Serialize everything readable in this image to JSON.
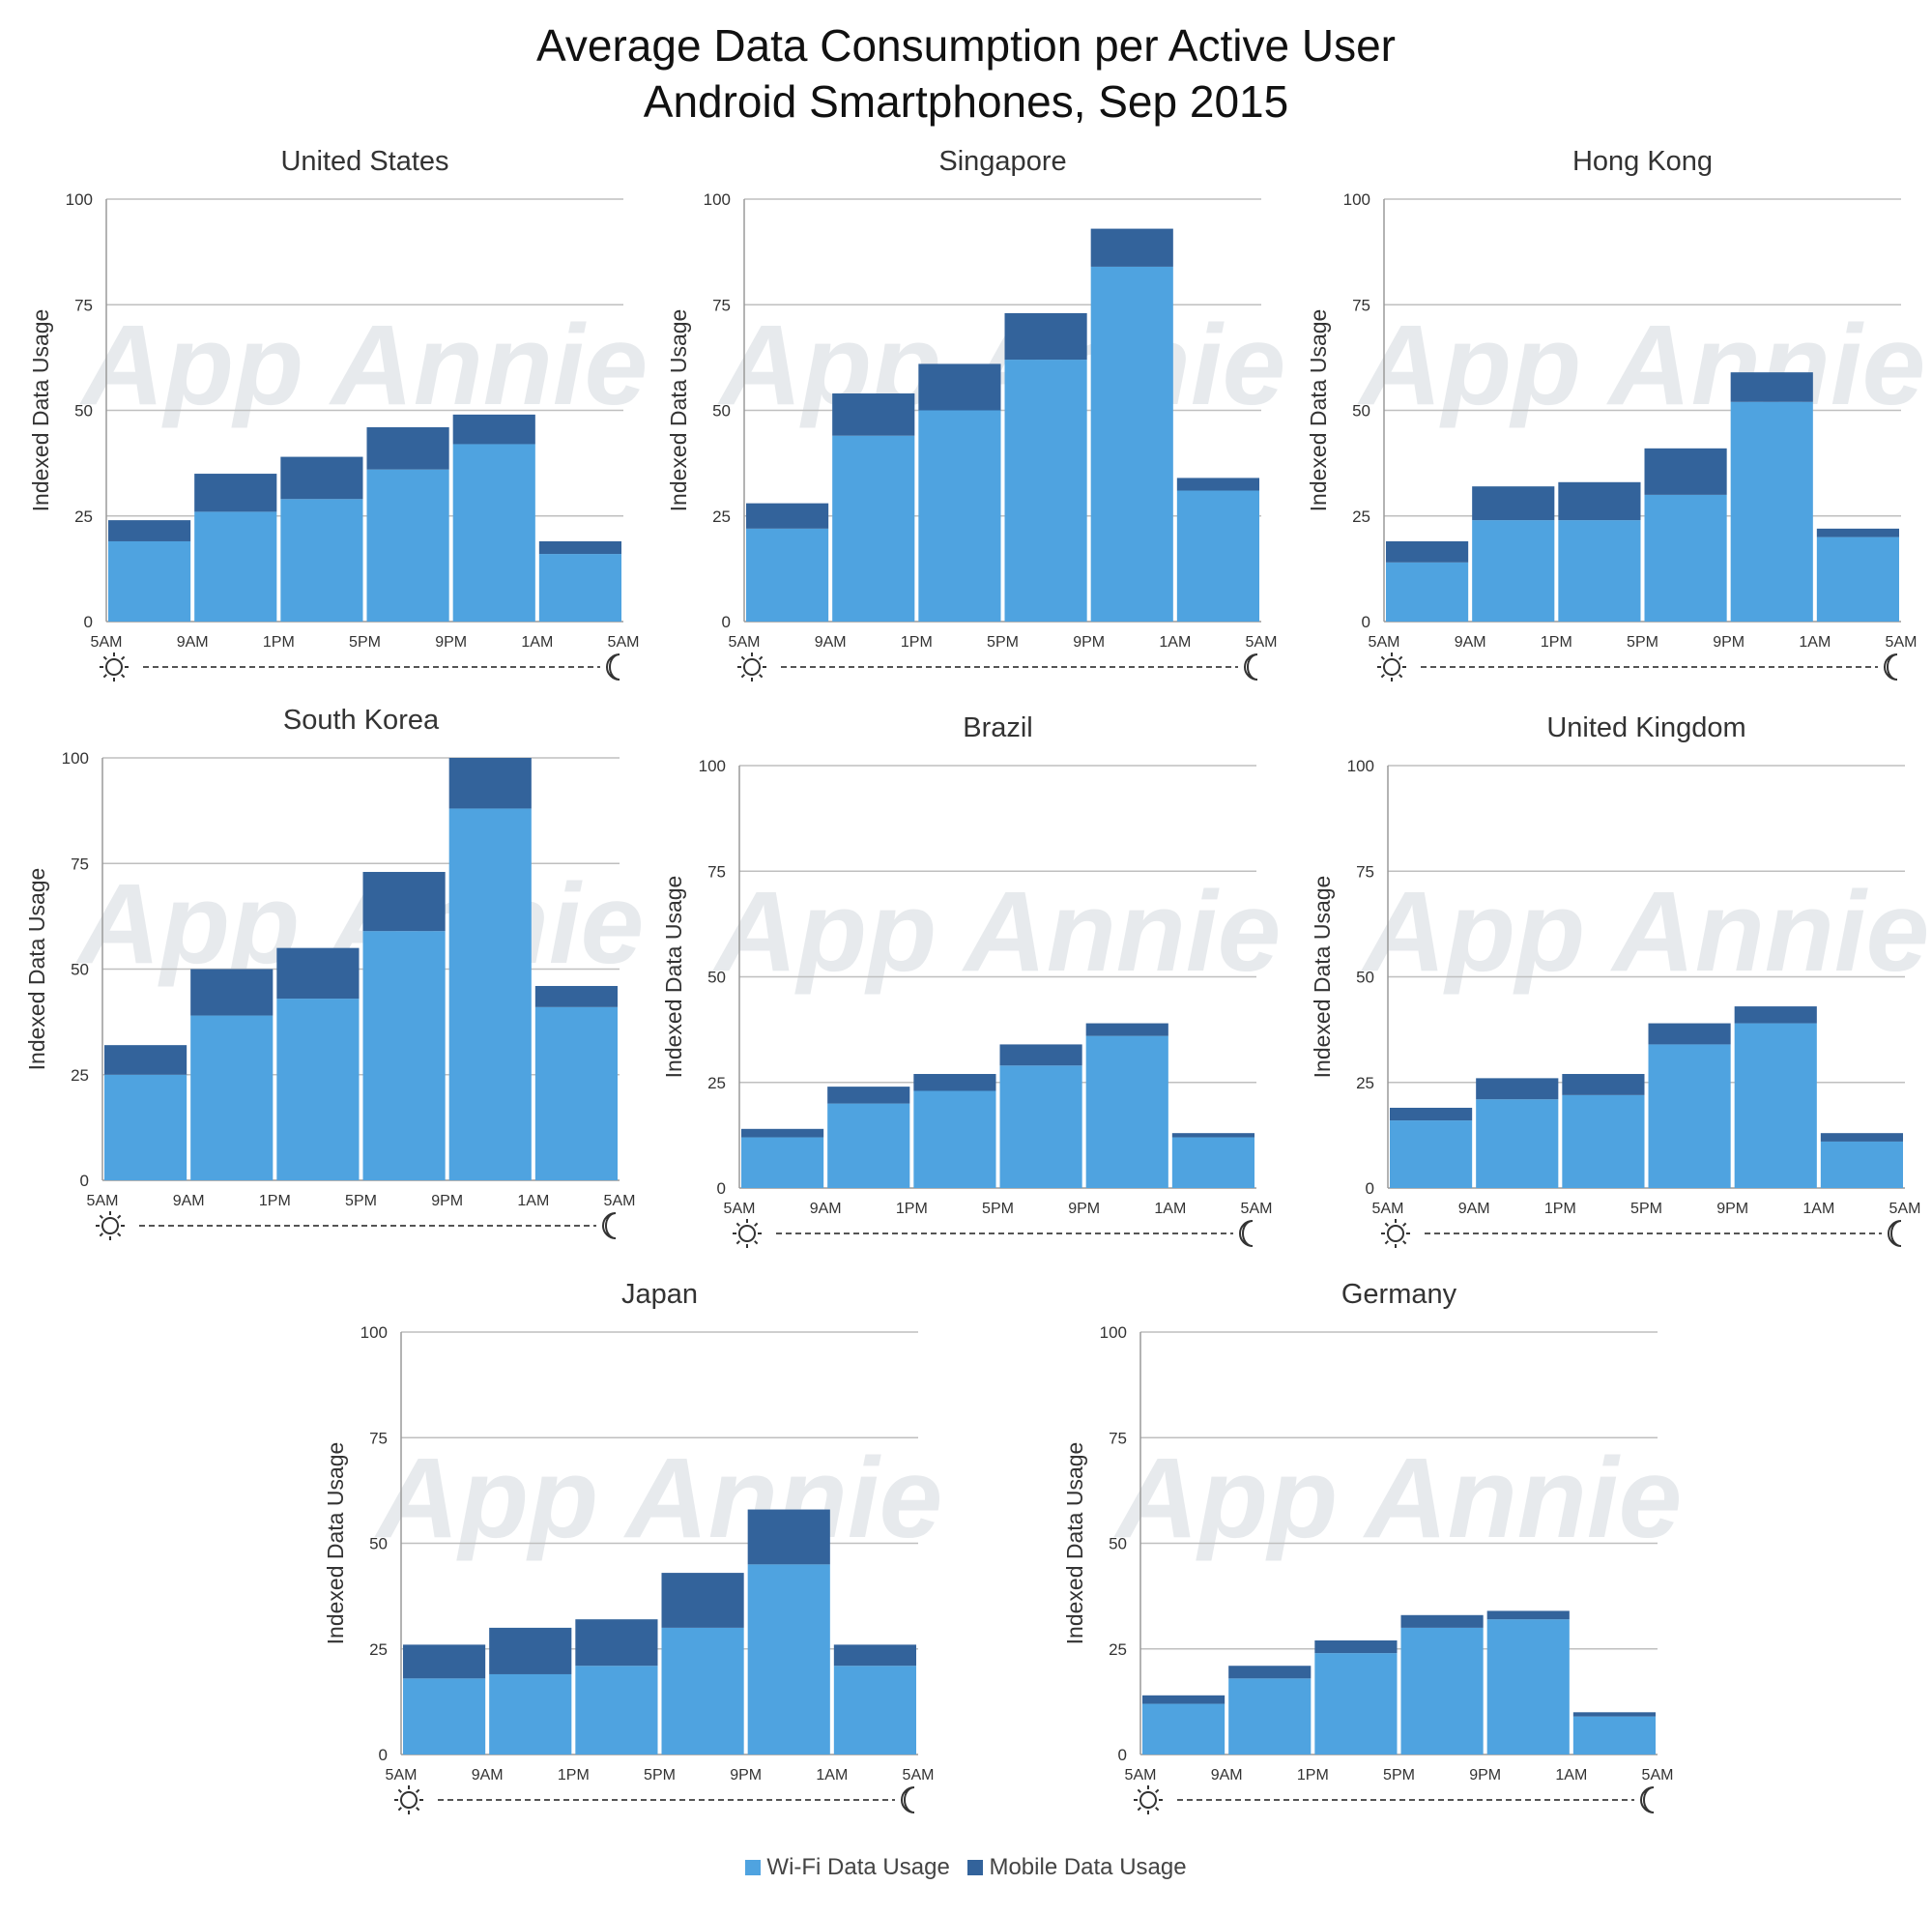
{
  "title_line1": "Average Data Consumption per Active User",
  "title_line2": "Android Smartphones, Sep 2015",
  "watermark": "App Annie",
  "colors": {
    "wifi": "#4fa3e0",
    "mobile": "#33639b",
    "grid": "#bfbfbf",
    "axis": "#9a9a9a",
    "watermark": "#e7eaed"
  },
  "legend": {
    "wifi": "Wi-Fi Data Usage",
    "mobile": "Mobile Data Usage"
  },
  "icons": {
    "start": "sun-icon",
    "end": "moon-icon"
  },
  "chart_data": [
    {
      "type": "bar",
      "stacked": true,
      "title": "United States",
      "ylabel": "Indexed Data Usage",
      "ylim": [
        0,
        100
      ],
      "yticks": [
        0,
        25,
        50,
        75,
        100
      ],
      "xticks": [
        "5AM",
        "9AM",
        "1PM",
        "5PM",
        "9PM",
        "1AM",
        "5AM"
      ],
      "series": [
        {
          "name": "Wi-Fi Data Usage",
          "values": [
            19,
            26,
            29,
            36,
            42,
            16
          ]
        },
        {
          "name": "Mobile Data Usage",
          "values": [
            5,
            9,
            10,
            10,
            7,
            3
          ]
        }
      ]
    },
    {
      "type": "bar",
      "stacked": true,
      "title": "Singapore",
      "ylabel": "Indexed Data Usage",
      "ylim": [
        0,
        100
      ],
      "yticks": [
        0,
        25,
        50,
        75,
        100
      ],
      "xticks": [
        "5AM",
        "9AM",
        "1PM",
        "5PM",
        "9PM",
        "1AM",
        "5AM"
      ],
      "series": [
        {
          "name": "Wi-Fi Data Usage",
          "values": [
            22,
            44,
            50,
            62,
            84,
            31
          ]
        },
        {
          "name": "Mobile Data Usage",
          "values": [
            6,
            10,
            11,
            11,
            9,
            3
          ]
        }
      ]
    },
    {
      "type": "bar",
      "stacked": true,
      "title": "Hong Kong",
      "ylabel": "Indexed Data Usage",
      "ylim": [
        0,
        100
      ],
      "yticks": [
        0,
        25,
        50,
        75,
        100
      ],
      "xticks": [
        "5AM",
        "9AM",
        "1PM",
        "5PM",
        "9PM",
        "1AM",
        "5AM"
      ],
      "series": [
        {
          "name": "Wi-Fi Data Usage",
          "values": [
            14,
            24,
            24,
            30,
            52,
            20
          ]
        },
        {
          "name": "Mobile Data Usage",
          "values": [
            5,
            8,
            9,
            11,
            7,
            2
          ]
        }
      ]
    },
    {
      "type": "bar",
      "stacked": true,
      "title": "South Korea",
      "ylabel": "Indexed Data Usage",
      "ylim": [
        0,
        100
      ],
      "yticks": [
        0,
        25,
        50,
        75,
        100
      ],
      "xticks": [
        "5AM",
        "9AM",
        "1PM",
        "5PM",
        "9PM",
        "1AM",
        "5AM"
      ],
      "series": [
        {
          "name": "Wi-Fi Data Usage",
          "values": [
            25,
            39,
            43,
            59,
            88,
            41
          ]
        },
        {
          "name": "Mobile Data Usage",
          "values": [
            7,
            11,
            12,
            14,
            12,
            5
          ]
        }
      ]
    },
    {
      "type": "bar",
      "stacked": true,
      "title": "Brazil",
      "ylabel": "Indexed Data Usage",
      "ylim": [
        0,
        100
      ],
      "yticks": [
        0,
        25,
        50,
        75,
        100
      ],
      "xticks": [
        "5AM",
        "9AM",
        "1PM",
        "5PM",
        "9PM",
        "1AM",
        "5AM"
      ],
      "series": [
        {
          "name": "Wi-Fi Data Usage",
          "values": [
            12,
            20,
            23,
            29,
            36,
            12
          ]
        },
        {
          "name": "Mobile Data Usage",
          "values": [
            2,
            4,
            4,
            5,
            3,
            1
          ]
        }
      ]
    },
    {
      "type": "bar",
      "stacked": true,
      "title": "United Kingdom",
      "ylabel": "Indexed Data Usage",
      "ylim": [
        0,
        100
      ],
      "yticks": [
        0,
        25,
        50,
        75,
        100
      ],
      "xticks": [
        "5AM",
        "9AM",
        "1PM",
        "5PM",
        "9PM",
        "1AM",
        "5AM"
      ],
      "series": [
        {
          "name": "Wi-Fi Data Usage",
          "values": [
            16,
            21,
            22,
            34,
            39,
            11
          ]
        },
        {
          "name": "Mobile Data Usage",
          "values": [
            3,
            5,
            5,
            5,
            4,
            2
          ]
        }
      ]
    },
    {
      "type": "bar",
      "stacked": true,
      "title": "Japan",
      "ylabel": "Indexed Data Usage",
      "ylim": [
        0,
        100
      ],
      "yticks": [
        0,
        25,
        50,
        75,
        100
      ],
      "xticks": [
        "5AM",
        "9AM",
        "1PM",
        "5PM",
        "9PM",
        "1AM",
        "5AM"
      ],
      "series": [
        {
          "name": "Wi-Fi Data Usage",
          "values": [
            18,
            19,
            21,
            30,
            45,
            21
          ]
        },
        {
          "name": "Mobile Data Usage",
          "values": [
            8,
            11,
            11,
            13,
            13,
            5
          ]
        }
      ]
    },
    {
      "type": "bar",
      "stacked": true,
      "title": "Germany",
      "ylabel": "Indexed Data Usage",
      "ylim": [
        0,
        100
      ],
      "yticks": [
        0,
        25,
        50,
        75,
        100
      ],
      "xticks": [
        "5AM",
        "9AM",
        "1PM",
        "5PM",
        "9PM",
        "1AM",
        "5AM"
      ],
      "series": [
        {
          "name": "Wi-Fi Data Usage",
          "values": [
            12,
            18,
            24,
            30,
            32,
            9
          ]
        },
        {
          "name": "Mobile Data Usage",
          "values": [
            2,
            3,
            3,
            3,
            2,
            1
          ]
        }
      ]
    }
  ]
}
